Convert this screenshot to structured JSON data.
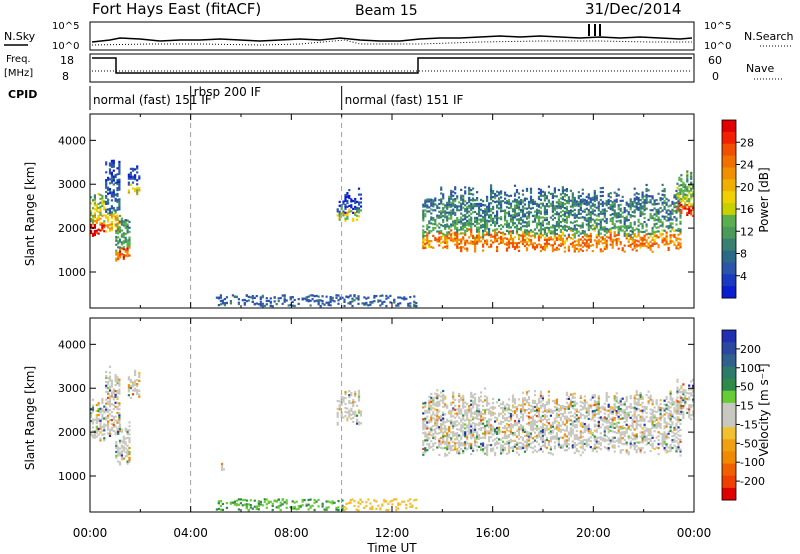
{
  "header": {
    "title": "Fort Hays East (fitACF)",
    "beam": "Beam 15",
    "date": "31/Dec/2014"
  },
  "noise_panel": {
    "left_label": "N.Sky",
    "right_label": "N.Search",
    "tick_top": "10^5",
    "tick_bottom": "10^0"
  },
  "freq_panel": {
    "left_label_1": "Freq.",
    "left_label_2": "[MHz]",
    "left_ticks": [
      "18",
      "8"
    ],
    "right_label": "Nave",
    "right_ticks": [
      "60",
      "0"
    ]
  },
  "cpid_panel": {
    "label": "CPID",
    "segments": [
      {
        "start_hour": 0.0,
        "end_hour": 4.0,
        "text": "normal (fast) 151 IF"
      },
      {
        "start_hour": 4.0,
        "end_hour": 10.0,
        "text": "rbsp 200 IF"
      },
      {
        "start_hour": 10.0,
        "end_hour": 24.0,
        "text": "normal (fast) 151 IF"
      }
    ]
  },
  "x_axis": {
    "label": "Time UT",
    "ticks": [
      "00:00",
      "04:00",
      "08:00",
      "12:00",
      "16:00",
      "20:00",
      "00:00"
    ]
  },
  "power_colorbar": {
    "label": "Power [dB]",
    "ticks": [
      "4",
      "8",
      "12",
      "16",
      "20",
      "24",
      "28"
    ]
  },
  "velocity_colorbar": {
    "label": "Velocity [m s⁻¹]",
    "ticks": [
      "200",
      "100",
      "50",
      "15",
      "-15",
      "-50",
      "-100",
      "-200"
    ]
  },
  "chart_data": [
    {
      "type": "heatmap",
      "ylabel": "Slant Range [km]",
      "xlabel": "",
      "xlim_hours": [
        0,
        24
      ],
      "ylim": [
        180,
        4600
      ],
      "yticks": [
        1000,
        2000,
        3000,
        4000
      ],
      "colorbar": {
        "label": "Power [dB]",
        "range": [
          0,
          30
        ],
        "ticks": [
          4,
          8,
          12,
          16,
          20,
          24,
          28
        ]
      },
      "echo_regions": [
        {
          "t0": 0.0,
          "t1": 0.6,
          "r_low": 1800,
          "r_high": 2900,
          "value": 18
        },
        {
          "t0": 0.6,
          "t1": 1.2,
          "r_low": 1900,
          "r_high": 3600,
          "value": 8
        },
        {
          "t0": 1.0,
          "t1": 1.6,
          "r_low": 1300,
          "r_high": 2300,
          "value": 14
        },
        {
          "t0": 1.5,
          "t1": 2.0,
          "r_low": 2800,
          "r_high": 3500,
          "value": 6
        },
        {
          "t0": 5.2,
          "t1": 5.5,
          "r_low": 1100,
          "r_high": 1300,
          "value": 6
        },
        {
          "t0": 9.8,
          "t1": 10.8,
          "r_low": 2200,
          "r_high": 3000,
          "value": 6
        },
        {
          "t0": 13.2,
          "t1": 23.5,
          "r_low": 1500,
          "r_high": 3000,
          "value": 12
        },
        {
          "t0": 23.3,
          "t1": 24.0,
          "r_low": 2300,
          "r_high": 3300,
          "value": 16
        }
      ],
      "ground_scatter_band": {
        "t0": 5.0,
        "t1": 13.0,
        "r_low": 200,
        "r_high": 450
      }
    },
    {
      "type": "heatmap",
      "ylabel": "Slant Range [km]",
      "xlabel": "Time UT",
      "xlim_hours": [
        0,
        24
      ],
      "ylim": [
        180,
        4600
      ],
      "yticks": [
        1000,
        2000,
        3000,
        4000
      ],
      "colorbar": {
        "label": "Velocity [m s⁻¹]",
        "range": [
          -250,
          250
        ],
        "ticks": [
          200,
          100,
          50,
          15,
          -15,
          -50,
          -100,
          -200
        ]
      }
    }
  ],
  "colors": {
    "ground_scatter": "#c8c8c0",
    "cpid_divider": "#888888"
  }
}
